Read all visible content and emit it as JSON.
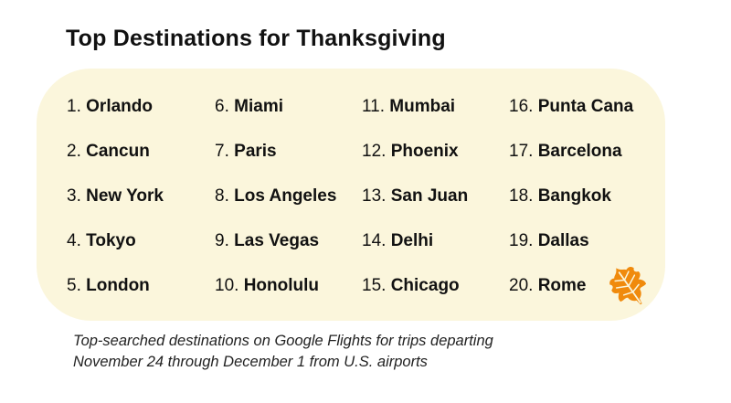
{
  "title": "Top Destinations for Thanksgiving",
  "columns": [
    [
      {
        "num": "1.",
        "name": "Orlando"
      },
      {
        "num": "2.",
        "name": "Cancun"
      },
      {
        "num": "3.",
        "name": "New York"
      },
      {
        "num": "4.",
        "name": "Tokyo"
      },
      {
        "num": "5.",
        "name": "London"
      }
    ],
    [
      {
        "num": "6.",
        "name": "Miami"
      },
      {
        "num": "7.",
        "name": "Paris"
      },
      {
        "num": "8.",
        "name": "Los Angeles"
      },
      {
        "num": "9.",
        "name": "Las Vegas"
      },
      {
        "num": "10.",
        "name": "Honolulu"
      }
    ],
    [
      {
        "num": "11.",
        "name": "Mumbai"
      },
      {
        "num": "12.",
        "name": "Phoenix"
      },
      {
        "num": "13.",
        "name": "San Juan"
      },
      {
        "num": "14.",
        "name": "Delhi"
      },
      {
        "num": "15.",
        "name": "Chicago"
      }
    ],
    [
      {
        "num": "16.",
        "name": "Punta Cana"
      },
      {
        "num": "17.",
        "name": "Barcelona"
      },
      {
        "num": "18.",
        "name": "Bangkok"
      },
      {
        "num": "19.",
        "name": "Dallas"
      },
      {
        "num": "20.",
        "name": "Rome"
      }
    ]
  ],
  "caption_line1": "Top-searched destinations on Google Flights for trips departing",
  "caption_line2": "November 24 through December 1 from U.S. airports",
  "icons": {
    "decoration": "autumn-leaf-icon"
  },
  "colors": {
    "card_bg": "#fbf6dc",
    "leaf": "#f08a0c"
  }
}
